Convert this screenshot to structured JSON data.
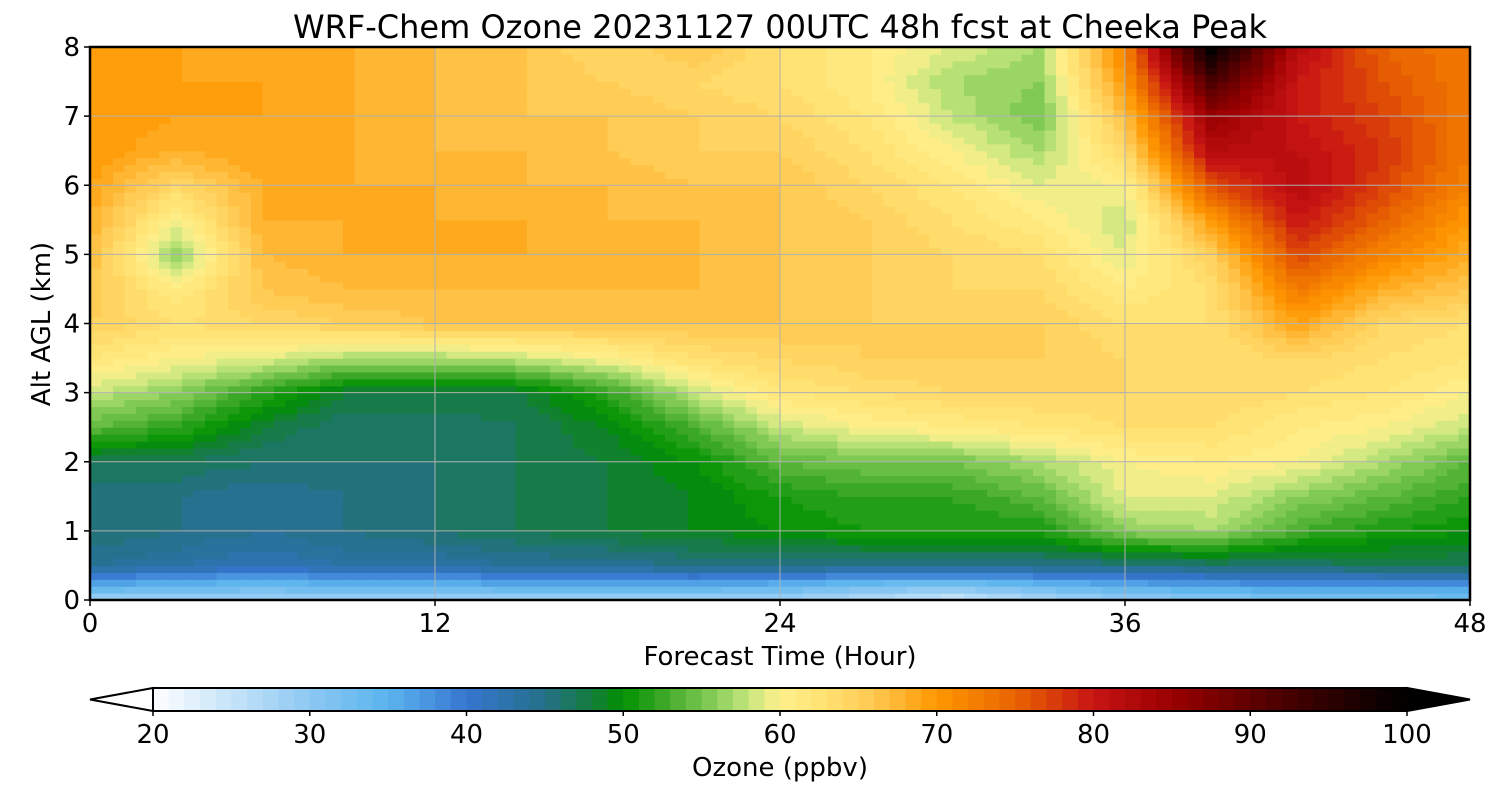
{
  "chart_data": {
    "type": "heatmap",
    "title": "WRF-Chem Ozone  20231127 00UTC 48h fcst at Cheeka Peak",
    "xlabel": "Forecast Time (Hour)",
    "ylabel": "Alt AGL (km)",
    "xlim": [
      0,
      48
    ],
    "ylim": [
      0,
      8
    ],
    "x_ticks": [
      0,
      12,
      24,
      36,
      48
    ],
    "y_ticks": [
      0,
      1,
      2,
      3,
      4,
      5,
      6,
      7,
      8
    ],
    "grid": true,
    "x": [
      0,
      3,
      6,
      9,
      12,
      15,
      18,
      21,
      24,
      27,
      30,
      33,
      36,
      39,
      42,
      45,
      48
    ],
    "y": [
      0.0,
      0.2,
      0.5,
      1.0,
      1.5,
      2.0,
      2.5,
      3.0,
      3.5,
      4.0,
      4.5,
      5.0,
      5.5,
      6.0,
      6.5,
      7.0,
      7.5,
      8.0
    ],
    "z": [
      [
        28,
        28,
        28,
        28,
        28,
        28,
        28,
        28,
        28,
        26,
        24,
        27,
        29,
        30,
        31,
        31,
        32
      ],
      [
        35,
        34,
        33,
        34,
        34,
        35,
        35,
        35,
        34,
        32,
        31,
        33,
        35,
        36,
        37,
        37,
        37
      ],
      [
        44,
        43,
        42,
        43,
        43,
        44,
        44,
        45,
        45,
        45,
        45,
        45,
        45,
        46,
        46,
        47,
        47
      ],
      [
        46,
        45,
        44,
        45,
        46,
        47,
        48,
        49,
        50,
        51,
        51,
        51,
        56,
        57,
        53,
        51,
        50
      ],
      [
        45,
        45,
        44,
        45,
        46,
        47,
        48,
        49,
        51,
        52,
        52,
        54,
        59,
        59,
        56,
        54,
        52
      ],
      [
        47,
        47,
        46,
        46,
        46,
        47,
        48,
        50,
        54,
        55,
        55,
        57,
        60,
        61,
        60,
        57,
        54
      ],
      [
        54,
        52,
        48,
        46,
        46,
        47,
        49,
        53,
        58,
        60,
        61,
        62,
        63,
        63,
        61,
        60,
        58
      ],
      [
        58,
        56,
        52,
        48,
        48,
        48,
        52,
        58,
        62,
        63,
        64,
        64,
        64,
        64,
        63,
        62,
        60
      ],
      [
        62,
        60,
        59,
        57,
        57,
        58,
        60,
        63,
        64,
        65,
        65,
        65,
        64,
        63,
        64,
        63,
        62
      ],
      [
        65,
        63,
        64,
        65,
        66,
        66,
        66,
        66,
        66,
        65,
        65,
        65,
        63,
        63,
        69,
        64,
        63
      ],
      [
        66,
        61,
        66,
        67,
        67,
        67,
        67,
        67,
        66,
        65,
        64,
        64,
        61,
        63,
        73,
        68,
        66
      ],
      [
        67,
        56,
        67,
        68,
        68,
        68,
        68,
        67,
        66,
        65,
        64,
        63,
        59,
        65,
        77,
        72,
        68
      ],
      [
        68,
        60,
        68,
        68,
        68,
        68,
        67,
        67,
        66,
        65,
        63,
        61,
        58,
        70,
        80,
        75,
        70
      ],
      [
        69,
        64,
        68,
        68,
        68,
        67,
        67,
        66,
        66,
        64,
        62,
        59,
        60,
        76,
        82,
        77,
        72
      ],
      [
        70,
        68,
        69,
        68,
        67,
        67,
        66,
        65,
        65,
        63,
        60,
        57,
        64,
        82,
        81,
        78,
        73
      ],
      [
        70,
        69,
        69,
        68,
        67,
        66,
        66,
        65,
        64,
        62,
        58,
        55,
        67,
        85,
        80,
        77,
        73
      ],
      [
        69,
        69,
        69,
        68,
        67,
        66,
        65,
        64,
        63,
        61,
        57,
        56,
        70,
        92,
        80,
        76,
        73
      ],
      [
        69,
        69,
        68,
        68,
        67,
        66,
        64,
        66,
        63,
        61,
        59,
        57,
        72,
        100,
        82,
        75,
        73
      ]
    ],
    "colorbar": {
      "label": "Ozone  (ppbv)",
      "min": 20,
      "max": 100,
      "ticks": [
        20,
        30,
        40,
        50,
        60,
        70,
        80,
        90,
        100
      ],
      "extend": "both",
      "levels": 80,
      "colormap": [
        [
          20,
          "#ffffff"
        ],
        [
          30,
          "#8cc8f2"
        ],
        [
          35,
          "#5ab4ee"
        ],
        [
          40,
          "#3776d0"
        ],
        [
          45,
          "#237088"
        ],
        [
          48,
          "#157d3c"
        ],
        [
          50,
          "#009100"
        ],
        [
          53,
          "#46ad2e"
        ],
        [
          56,
          "#8ccf5a"
        ],
        [
          58,
          "#c7e77e"
        ],
        [
          60,
          "#fff08c"
        ],
        [
          63,
          "#ffe070"
        ],
        [
          66,
          "#ffc850"
        ],
        [
          70,
          "#ff9800"
        ],
        [
          75,
          "#e86400"
        ],
        [
          80,
          "#c81414"
        ],
        [
          85,
          "#9a0000"
        ],
        [
          90,
          "#600000"
        ],
        [
          95,
          "#2c0000"
        ],
        [
          100,
          "#000000"
        ]
      ]
    }
  }
}
